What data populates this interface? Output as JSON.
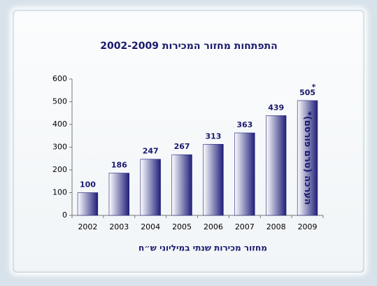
{
  "chart_data": {
    "type": "bar",
    "title": "התפתחות מחזור המכירות 2002-2009",
    "x_label": "מחזור מכירות שנתי במיליוני ש״ח",
    "categories": [
      "2002",
      "2003",
      "2004",
      "2005",
      "2006",
      "2007",
      "2008",
      "2009"
    ],
    "values": [
      100,
      186,
      247,
      267,
      313,
      363,
      439,
      505
    ],
    "color": "#1f1f7a",
    "ylim": [
      0,
      600
    ],
    "yticks": [
      0,
      100,
      200,
      300,
      400,
      500,
      600
    ],
    "grid": false,
    "footnote_mark": "*",
    "annotation": "*הערכה (טרם פורסם)"
  }
}
